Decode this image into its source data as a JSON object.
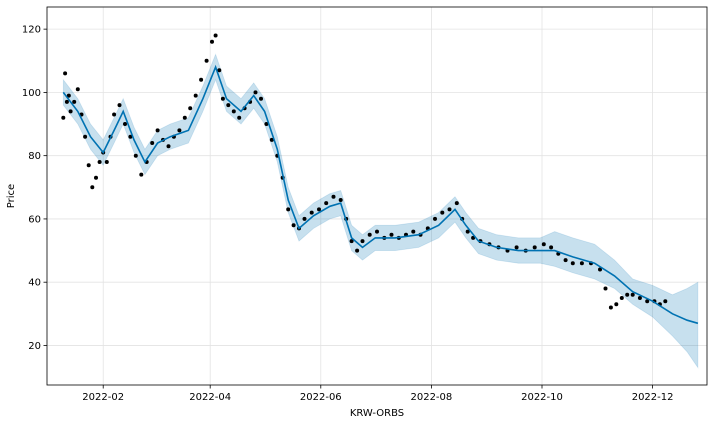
{
  "chart_data": {
    "type": "scatter",
    "xlabel": "KRW-ORBS",
    "ylabel": "Price",
    "xlim": [
      "2022-01-01",
      "2022-12-31"
    ],
    "ylim": [
      7.5,
      127
    ],
    "x_ticks": [
      "2022-02-01",
      "2022-04-01",
      "2022-06-01",
      "2022-08-01",
      "2022-10-01",
      "2022-12-01"
    ],
    "x_tick_labels": [
      "2022-02",
      "2022-04",
      "2022-06",
      "2022-08",
      "2022-10",
      "2022-12"
    ],
    "y_ticks": [
      20,
      40,
      60,
      80,
      100,
      120
    ],
    "y_tick_labels": [
      "20",
      "40",
      "60",
      "80",
      "100",
      "120"
    ],
    "grid": true,
    "colors": {
      "observed": "#000000",
      "forecast": "#0072B2",
      "interval": "#0072B2"
    },
    "series": [
      {
        "role": "observed",
        "points": [
          [
            "2022-01-10",
            92
          ],
          [
            "2022-01-11",
            106
          ],
          [
            "2022-01-12",
            97
          ],
          [
            "2022-01-13",
            99
          ],
          [
            "2022-01-14",
            94
          ],
          [
            "2022-01-16",
            97
          ],
          [
            "2022-01-18",
            101
          ],
          [
            "2022-01-20",
            93
          ],
          [
            "2022-01-22",
            86
          ],
          [
            "2022-01-24",
            77
          ],
          [
            "2022-01-26",
            70
          ],
          [
            "2022-01-28",
            73
          ],
          [
            "2022-01-30",
            78
          ],
          [
            "2022-02-01",
            81
          ],
          [
            "2022-02-03",
            78
          ],
          [
            "2022-02-05",
            86
          ],
          [
            "2022-02-07",
            93
          ],
          [
            "2022-02-10",
            96
          ],
          [
            "2022-02-13",
            90
          ],
          [
            "2022-02-16",
            86
          ],
          [
            "2022-02-19",
            80
          ],
          [
            "2022-02-22",
            74
          ],
          [
            "2022-02-25",
            78
          ],
          [
            "2022-02-28",
            84
          ],
          [
            "2022-03-03",
            88
          ],
          [
            "2022-03-06",
            85
          ],
          [
            "2022-03-09",
            83
          ],
          [
            "2022-03-12",
            86
          ],
          [
            "2022-03-15",
            88
          ],
          [
            "2022-03-18",
            92
          ],
          [
            "2022-03-21",
            95
          ],
          [
            "2022-03-24",
            99
          ],
          [
            "2022-03-27",
            104
          ],
          [
            "2022-03-30",
            110
          ],
          [
            "2022-04-02",
            116
          ],
          [
            "2022-04-04",
            118
          ],
          [
            "2022-04-06",
            107
          ],
          [
            "2022-04-08",
            98
          ],
          [
            "2022-04-11",
            96
          ],
          [
            "2022-04-14",
            94
          ],
          [
            "2022-04-17",
            92
          ],
          [
            "2022-04-20",
            95
          ],
          [
            "2022-04-23",
            97
          ],
          [
            "2022-04-26",
            100
          ],
          [
            "2022-04-29",
            98
          ],
          [
            "2022-05-02",
            90
          ],
          [
            "2022-05-05",
            85
          ],
          [
            "2022-05-08",
            80
          ],
          [
            "2022-05-11",
            73
          ],
          [
            "2022-05-14",
            63
          ],
          [
            "2022-05-17",
            58
          ],
          [
            "2022-05-20",
            57
          ],
          [
            "2022-05-23",
            60
          ],
          [
            "2022-05-27",
            62
          ],
          [
            "2022-05-31",
            63
          ],
          [
            "2022-06-04",
            65
          ],
          [
            "2022-06-08",
            67
          ],
          [
            "2022-06-12",
            66
          ],
          [
            "2022-06-15",
            60
          ],
          [
            "2022-06-18",
            53
          ],
          [
            "2022-06-21",
            50
          ],
          [
            "2022-06-24",
            53
          ],
          [
            "2022-06-28",
            55
          ],
          [
            "2022-07-02",
            56
          ],
          [
            "2022-07-06",
            54
          ],
          [
            "2022-07-10",
            55
          ],
          [
            "2022-07-14",
            54
          ],
          [
            "2022-07-18",
            55
          ],
          [
            "2022-07-22",
            56
          ],
          [
            "2022-07-26",
            55
          ],
          [
            "2022-07-30",
            57
          ],
          [
            "2022-08-03",
            60
          ],
          [
            "2022-08-07",
            62
          ],
          [
            "2022-08-11",
            63
          ],
          [
            "2022-08-15",
            65
          ],
          [
            "2022-08-18",
            60
          ],
          [
            "2022-08-21",
            56
          ],
          [
            "2022-08-24",
            54
          ],
          [
            "2022-08-28",
            53
          ],
          [
            "2022-09-02",
            52
          ],
          [
            "2022-09-07",
            51
          ],
          [
            "2022-09-12",
            50
          ],
          [
            "2022-09-17",
            51
          ],
          [
            "2022-09-22",
            50
          ],
          [
            "2022-09-27",
            51
          ],
          [
            "2022-10-02",
            52
          ],
          [
            "2022-10-06",
            51
          ],
          [
            "2022-10-10",
            49
          ],
          [
            "2022-10-14",
            47
          ],
          [
            "2022-10-18",
            46
          ],
          [
            "2022-10-23",
            46
          ],
          [
            "2022-10-28",
            46
          ],
          [
            "2022-11-02",
            44
          ],
          [
            "2022-11-05",
            38
          ],
          [
            "2022-11-08",
            32
          ],
          [
            "2022-11-11",
            33
          ],
          [
            "2022-11-14",
            35
          ],
          [
            "2022-11-17",
            36
          ],
          [
            "2022-11-20",
            36
          ],
          [
            "2022-11-24",
            35
          ],
          [
            "2022-11-28",
            34
          ],
          [
            "2022-12-02",
            34
          ],
          [
            "2022-12-05",
            33
          ],
          [
            "2022-12-08",
            34
          ]
        ]
      },
      {
        "role": "forecast",
        "points": [
          [
            "2022-01-10",
            100
          ],
          [
            "2022-01-18",
            94
          ],
          [
            "2022-01-25",
            86
          ],
          [
            "2022-02-01",
            81
          ],
          [
            "2022-02-07",
            88
          ],
          [
            "2022-02-12",
            94
          ],
          [
            "2022-02-18",
            85
          ],
          [
            "2022-02-24",
            78
          ],
          [
            "2022-03-03",
            84
          ],
          [
            "2022-03-10",
            86
          ],
          [
            "2022-03-20",
            88
          ],
          [
            "2022-03-28",
            98
          ],
          [
            "2022-04-04",
            108
          ],
          [
            "2022-04-10",
            98
          ],
          [
            "2022-04-18",
            94
          ],
          [
            "2022-04-25",
            99
          ],
          [
            "2022-05-01",
            94
          ],
          [
            "2022-05-08",
            82
          ],
          [
            "2022-05-14",
            66
          ],
          [
            "2022-05-20",
            57
          ],
          [
            "2022-05-28",
            61
          ],
          [
            "2022-06-06",
            64
          ],
          [
            "2022-06-12",
            65
          ],
          [
            "2022-06-18",
            54
          ],
          [
            "2022-06-24",
            51
          ],
          [
            "2022-07-01",
            54
          ],
          [
            "2022-07-12",
            54
          ],
          [
            "2022-07-25",
            55
          ],
          [
            "2022-08-05",
            58
          ],
          [
            "2022-08-14",
            63
          ],
          [
            "2022-08-20",
            58
          ],
          [
            "2022-08-27",
            53
          ],
          [
            "2022-09-06",
            51
          ],
          [
            "2022-09-18",
            50
          ],
          [
            "2022-09-30",
            50
          ],
          [
            "2022-10-08",
            50
          ],
          [
            "2022-10-18",
            48
          ],
          [
            "2022-10-30",
            46
          ],
          [
            "2022-11-10",
            42
          ],
          [
            "2022-11-20",
            37
          ],
          [
            "2022-12-01",
            34
          ],
          [
            "2022-12-12",
            30
          ],
          [
            "2022-12-20",
            28
          ],
          [
            "2022-12-26",
            27
          ]
        ]
      },
      {
        "role": "interval",
        "points": [
          [
            "2022-01-10",
            96,
            104
          ],
          [
            "2022-01-18",
            90,
            98
          ],
          [
            "2022-01-25",
            82,
            90
          ],
          [
            "2022-02-01",
            77,
            85
          ],
          [
            "2022-02-07",
            84,
            92
          ],
          [
            "2022-02-12",
            90,
            98
          ],
          [
            "2022-02-18",
            81,
            89
          ],
          [
            "2022-02-24",
            74,
            82
          ],
          [
            "2022-03-03",
            80,
            88
          ],
          [
            "2022-03-10",
            82,
            90
          ],
          [
            "2022-03-20",
            84,
            92
          ],
          [
            "2022-03-28",
            94,
            102
          ],
          [
            "2022-04-04",
            104,
            112
          ],
          [
            "2022-04-10",
            94,
            102
          ],
          [
            "2022-04-18",
            90,
            98
          ],
          [
            "2022-04-25",
            95,
            103
          ],
          [
            "2022-05-01",
            90,
            98
          ],
          [
            "2022-05-08",
            78,
            86
          ],
          [
            "2022-05-14",
            62,
            70
          ],
          [
            "2022-05-20",
            53,
            61
          ],
          [
            "2022-05-28",
            57,
            65
          ],
          [
            "2022-06-06",
            60,
            68
          ],
          [
            "2022-06-12",
            61,
            69
          ],
          [
            "2022-06-18",
            50,
            58
          ],
          [
            "2022-06-24",
            47,
            55
          ],
          [
            "2022-07-01",
            50,
            58
          ],
          [
            "2022-07-12",
            50,
            58
          ],
          [
            "2022-07-25",
            51,
            59
          ],
          [
            "2022-08-05",
            54,
            62
          ],
          [
            "2022-08-14",
            59,
            67
          ],
          [
            "2022-08-20",
            54,
            62
          ],
          [
            "2022-08-27",
            49,
            57
          ],
          [
            "2022-09-06",
            47,
            55
          ],
          [
            "2022-09-18",
            46,
            54
          ],
          [
            "2022-09-30",
            46,
            54
          ],
          [
            "2022-10-08",
            45,
            56
          ],
          [
            "2022-10-18",
            43,
            54
          ],
          [
            "2022-10-30",
            41,
            52
          ],
          [
            "2022-11-10",
            38,
            47
          ],
          [
            "2022-11-20",
            33,
            41
          ],
          [
            "2022-12-01",
            29,
            39
          ],
          [
            "2022-12-12",
            23,
            36
          ],
          [
            "2022-12-20",
            18,
            38
          ],
          [
            "2022-12-26",
            13,
            40
          ]
        ]
      }
    ]
  }
}
